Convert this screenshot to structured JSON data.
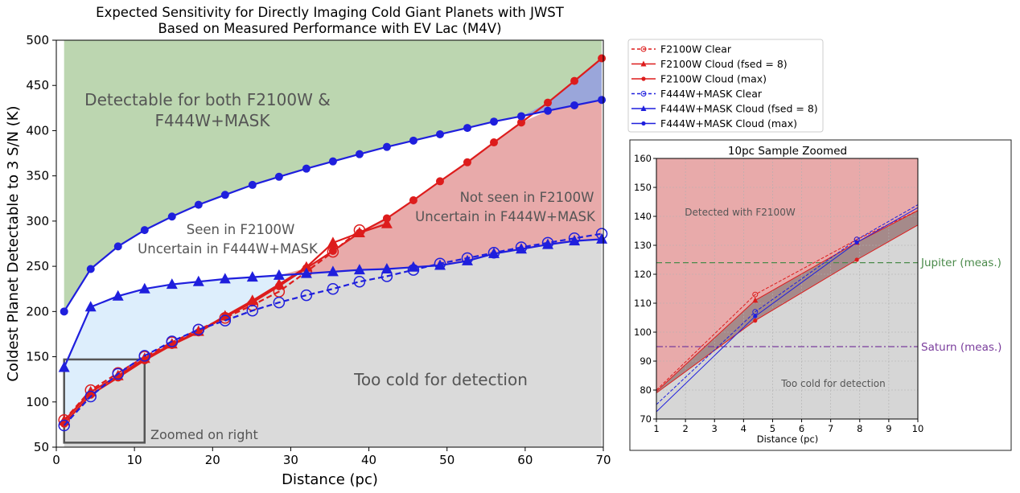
{
  "chart_data": [
    {
      "type": "line",
      "title": "Expected Sensitivity for Directly Imaging Cold Giant Planets with JWST",
      "subtitle": "Based on Measured Performance with EV Lac (M4V)",
      "xlabel": "Distance (pc)",
      "ylabel": "Coldest Planet Detectable to 3 S/N (K)",
      "xlim": [
        0,
        70
      ],
      "ylim": [
        50,
        500
      ],
      "xticks": [
        0,
        10,
        20,
        30,
        40,
        50,
        60,
        70
      ],
      "yticks": [
        50,
        100,
        150,
        200,
        250,
        300,
        350,
        400,
        450,
        500
      ],
      "grid": false,
      "legend": "outside-right",
      "x": [
        1.0,
        4.4,
        7.9,
        11.3,
        14.8,
        18.2,
        21.6,
        25.1,
        28.5,
        32.0,
        35.4,
        38.8,
        42.3,
        45.7,
        49.1,
        52.6,
        56.0,
        59.5,
        62.9,
        66.3,
        69.8
      ],
      "series": [
        {
          "name": "F2100W Clear",
          "color": "#dd1c1c",
          "dash": "dashed",
          "marker": "open-circle",
          "values": [
            80,
            113,
            132,
            150,
            166,
            180,
            193,
            207,
            222,
            244,
            266,
            290,
            null,
            null,
            null,
            null,
            null,
            null,
            null,
            null,
            null
          ]
        },
        {
          "name": "F2100W Cloud (fsed = 8)",
          "color": "#dd1c1c",
          "dash": "solid",
          "marker": "triangle",
          "values": [
            79,
            111,
            129,
            148,
            164,
            178,
            195,
            212,
            230,
            249,
            276,
            287,
            297,
            null,
            null,
            null,
            null,
            null,
            null,
            null,
            null
          ]
        },
        {
          "name": "F2100W Cloud (max)",
          "color": "#dd1c1c",
          "dash": "solid",
          "marker": "filled-circle",
          "values": [
            76,
            108,
            127,
            146,
            163,
            177,
            194,
            210,
            228,
            248,
            267,
            287,
            303,
            323,
            344,
            365,
            387,
            409,
            431,
            455,
            480
          ]
        },
        {
          "name": "F444W+MASK Clear",
          "color": "#1f1fdd",
          "dash": "dashed",
          "marker": "open-circle",
          "values": [
            74,
            106,
            131,
            151,
            167,
            180,
            190,
            201,
            210,
            218,
            225,
            233,
            239,
            246,
            253,
            259,
            265,
            271,
            276,
            281,
            286
          ]
        },
        {
          "name": "F444W+MASK Cloud (fsed = 8)",
          "color": "#1f1fdd",
          "dash": "solid",
          "marker": "triangle",
          "values": [
            138,
            205,
            217,
            225,
            230,
            233,
            236,
            238,
            240,
            242,
            244,
            246,
            247,
            249,
            251,
            256,
            264,
            269,
            274,
            278,
            280
          ]
        },
        {
          "name": "F444W+MASK Cloud (max)",
          "color": "#1f1fdd",
          "dash": "solid",
          "marker": "filled-circle",
          "values": [
            200,
            247,
            272,
            290,
            305,
            318,
            329,
            340,
            349,
            358,
            366,
            374,
            382,
            389,
            396,
            403,
            410,
            416,
            422,
            428,
            434
          ]
        }
      ],
      "regions": [
        {
          "name": "Detectable for both F2100W & F444W+MASK",
          "color": "#bcd6b0"
        },
        {
          "name": "Seen in F2100W Uncertain in F444W+MASK",
          "color": "#e8aaaa"
        },
        {
          "name": "Not seen in F2100W Uncertain in F444W+MASK",
          "color": "#ddeefc"
        },
        {
          "name": "Too cold for detection",
          "color": "#dadada"
        },
        {
          "name": "overlap",
          "color": "#9aa6da"
        }
      ],
      "annotations": {
        "both_line1": "Detectable for both F2100W &",
        "both_line2": "F444W+MASK",
        "seen_line1": "Seen in F2100W",
        "seen_line2": "Uncertain in F444W+MASK",
        "notseen_line1": "Not seen in F2100W",
        "notseen_line2": "Uncertain in F444W+MASK",
        "cold": "Too cold for detection",
        "zoom_box": "Zoomed on right"
      },
      "zoom_box_extent": {
        "x": [
          1,
          11.3
        ],
        "y": [
          55,
          147
        ]
      }
    },
    {
      "type": "line",
      "title": "10pc Sample Zoomed",
      "xlabel": "Distance (pc)",
      "ylabel": "",
      "xlim": [
        1,
        10
      ],
      "ylim": [
        70,
        160
      ],
      "xticks": [
        1,
        2,
        3,
        4,
        5,
        6,
        7,
        8,
        9,
        10
      ],
      "yticks": [
        70,
        80,
        90,
        100,
        110,
        120,
        130,
        140,
        150,
        160
      ],
      "grid": true,
      "x": [
        1.0,
        4.4,
        7.9,
        10.0
      ],
      "series": [
        {
          "name": "F2100W Clear",
          "color": "#dd1c1c",
          "dash": "dashed",
          "values": [
            80,
            113,
            132,
            142
          ]
        },
        {
          "name": "F2100W Cloud (fsed = 8)",
          "color": "#dd1c1c",
          "dash": "solid",
          "values": [
            79.5,
            111,
            131,
            142
          ]
        },
        {
          "name": "F2100W Cloud (max)",
          "color": "#dd1c1c",
          "dash": "solid",
          "values": [
            79,
            104,
            125,
            137
          ]
        },
        {
          "name": "F444W+MASK Clear",
          "color": "#1f1fdd",
          "dash": "dashed",
          "values": [
            75,
            107,
            132,
            144
          ]
        },
        {
          "name": "F444W+MASK Cloud",
          "color": "#1f1fdd",
          "dash": "solid",
          "values": [
            72.5,
            105.5,
            131,
            143
          ]
        }
      ],
      "reference_lines": [
        {
          "label": "Jupiter (meas.)",
          "y": 124,
          "color": "#4a8a4a",
          "dash": "dashed"
        },
        {
          "label": "Saturn (meas.)",
          "y": 95,
          "color": "#7a3d9c",
          "dash": "dashdot"
        }
      ],
      "annotations": {
        "detected": "Detected with F2100W",
        "cold": "Too cold for detection"
      },
      "regions": [
        {
          "name": "Detected with F2100W",
          "color": "#e8aaaa"
        },
        {
          "name": "Too cold for detection",
          "color": "#d6d6d6"
        },
        {
          "name": "band",
          "color": "#a58a8a"
        }
      ]
    }
  ]
}
